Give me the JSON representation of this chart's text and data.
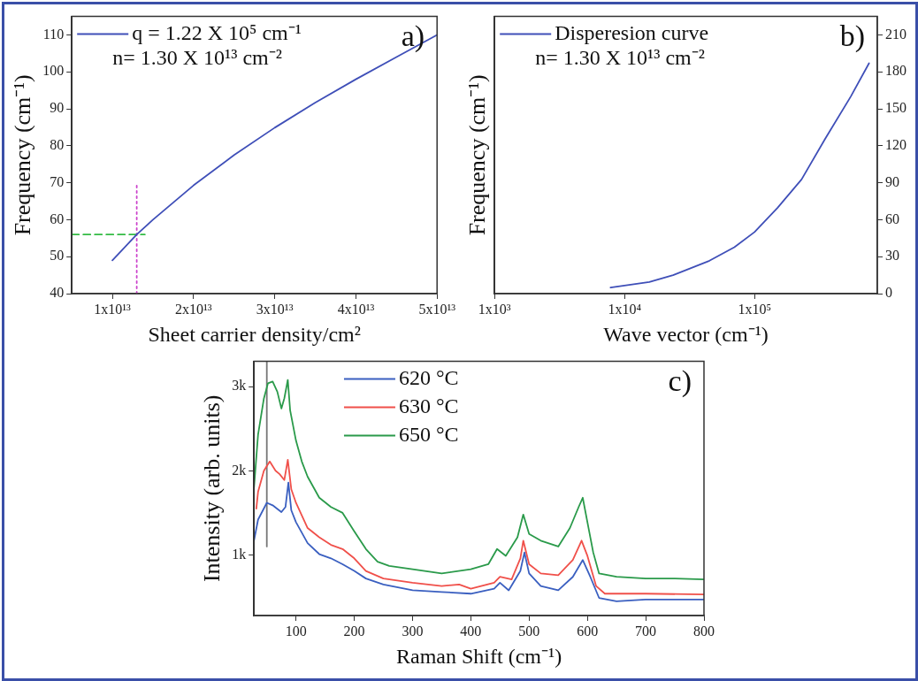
{
  "chart_data": [
    {
      "type": "line",
      "xlabel": "Sheet carrier density/cm²",
      "ylabel": "Frequency (cm⁻¹)",
      "xlim": [
        5000000000000.0,
        50000000000000.0
      ],
      "xticks": [
        {
          "value": 10000000000000.0,
          "label": "1x10¹³"
        },
        {
          "value": 20000000000000.0,
          "label": "2x10¹³"
        },
        {
          "value": 30000000000000.0,
          "label": "3x10¹³"
        },
        {
          "value": 40000000000000.0,
          "label": "4x10¹³"
        },
        {
          "value": 50000000000000.0,
          "label": "5x10¹³"
        }
      ],
      "ylim": [
        40,
        115
      ],
      "yticks": [
        40,
        50,
        60,
        70,
        80,
        90,
        100,
        110
      ],
      "grid": false,
      "legend": "top left",
      "annotations": [
        "a)",
        "n= 1.30 X 10¹³ cm⁻²"
      ],
      "series": [
        {
          "name": "q = 1.22 X 10⁵ cm⁻¹",
          "color": "#3f4fb8",
          "x": [
            10000000000000.0,
            13000000000000.0,
            15000000000000.0,
            20000000000000.0,
            25000000000000.0,
            30000000000000.0,
            35000000000000.0,
            40000000000000.0,
            45000000000000.0,
            50000000000000.0
          ],
          "values": [
            49,
            56,
            60,
            69.3,
            77.5,
            84.9,
            91.7,
            98,
            104,
            110
          ]
        },
        {
          "color": "#33bb44",
          "line_style": "dashed",
          "x": [
            5000000000000.0,
            14000000000000.0
          ],
          "values": [
            56,
            56
          ]
        },
        {
          "color": "#cc44cc",
          "line_style": "dotted",
          "x": [
            13000000000000.0,
            13000000000000.0
          ],
          "values": [
            40,
            70
          ]
        }
      ]
    },
    {
      "type": "line",
      "xlabel": "Wave vector (cm⁻¹)",
      "ylabel": "Frequency (cm⁻¹)",
      "log": "x",
      "xlim": [
        1000,
        880000
      ],
      "xticks": [
        {
          "value": 1000,
          "label": "1x10³"
        },
        {
          "value": 10000,
          "label": "1x10⁴"
        },
        {
          "value": 100000,
          "label": "1x10⁵"
        }
      ],
      "y2lim": [
        0,
        225
      ],
      "y2ticks": [
        0,
        30,
        60,
        90,
        120,
        150,
        180,
        210
      ],
      "grid": false,
      "legend": "top left",
      "annotations": [
        "b)",
        "n= 1.30 X 10¹³ cm⁻²"
      ],
      "series": [
        {
          "name": "Disperesion curve",
          "color": "#3f4fb8",
          "axis": "y2",
          "x": [
            7800,
            15500,
            23600,
            45000,
            70000,
            100000,
            150000,
            230000,
            350000,
            550000,
            760000
          ],
          "values": [
            5,
            9.5,
            15,
            26.7,
            37.7,
            50,
            69.6,
            92.7,
            125.8,
            160,
            187
          ]
        }
      ]
    },
    {
      "type": "line",
      "xlabel": "Raman Shift (cm⁻¹)",
      "ylabel": "Intensity (arb. units)",
      "xlim": [
        28,
        800
      ],
      "xticks": [
        100,
        200,
        300,
        400,
        500,
        600,
        700,
        800
      ],
      "ylim": [
        280,
        3300
      ],
      "yticks": [
        {
          "value": 1000,
          "label": "1k"
        },
        {
          "value": 2000,
          "label": "2k"
        },
        {
          "value": 3000,
          "label": "3k"
        }
      ],
      "grid": false,
      "legend": "top",
      "annotations": [
        "c)"
      ],
      "series": [
        {
          "name": "620 °C",
          "color": "#3a5fc0",
          "x": [
            28,
            35,
            50,
            60,
            75,
            82,
            87,
            92,
            100,
            120,
            140,
            160,
            180,
            200,
            220,
            250,
            300,
            350,
            400,
            440,
            450,
            465,
            485,
            492,
            500,
            520,
            550,
            575,
            592,
            605,
            620,
            650,
            700,
            800
          ],
          "values": [
            1170,
            1420,
            1620,
            1590,
            1510,
            1570,
            1860,
            1530,
            1390,
            1140,
            1010,
            960,
            890,
            810,
            720,
            650,
            580,
            560,
            540,
            600,
            670,
            580,
            810,
            1030,
            780,
            630,
            580,
            740,
            940,
            740,
            490,
            450,
            470,
            470
          ]
        },
        {
          "name": "630 °C",
          "color": "#f0504a",
          "x": [
            32,
            35,
            45,
            55,
            65,
            72,
            80,
            86,
            92,
            100,
            120,
            140,
            160,
            180,
            200,
            220,
            250,
            300,
            350,
            380,
            400,
            440,
            450,
            470,
            485,
            490,
            500,
            520,
            550,
            575,
            590,
            600,
            615,
            630,
            700,
            800
          ],
          "values": [
            1550,
            1750,
            2000,
            2110,
            2000,
            1960,
            1890,
            2130,
            1780,
            1620,
            1320,
            1210,
            1120,
            1070,
            960,
            810,
            720,
            670,
            630,
            650,
            600,
            670,
            740,
            710,
            960,
            1170,
            890,
            780,
            760,
            940,
            1170,
            990,
            630,
            540,
            540,
            530
          ]
        },
        {
          "name": "650 °C",
          "color": "#2a9a4a",
          "x": [
            28,
            35,
            45,
            52,
            60,
            68,
            75,
            80,
            86,
            90,
            100,
            110,
            120,
            140,
            160,
            180,
            200,
            220,
            240,
            260,
            300,
            350,
            400,
            430,
            445,
            460,
            480,
            490,
            500,
            520,
            550,
            570,
            585,
            592,
            600,
            610,
            620,
            650,
            700,
            750,
            800
          ],
          "values": [
            1800,
            2430,
            2860,
            3040,
            3060,
            2940,
            2740,
            2860,
            3080,
            2720,
            2360,
            2110,
            1930,
            1680,
            1570,
            1500,
            1280,
            1070,
            920,
            870,
            830,
            780,
            830,
            890,
            1070,
            990,
            1210,
            1480,
            1250,
            1170,
            1100,
            1320,
            1570,
            1680,
            1390,
            1030,
            780,
            740,
            720,
            720,
            710
          ]
        },
        {
          "color": "#777777",
          "x": [
            50,
            50
          ],
          "values": [
            1100,
            3300
          ]
        }
      ]
    }
  ]
}
